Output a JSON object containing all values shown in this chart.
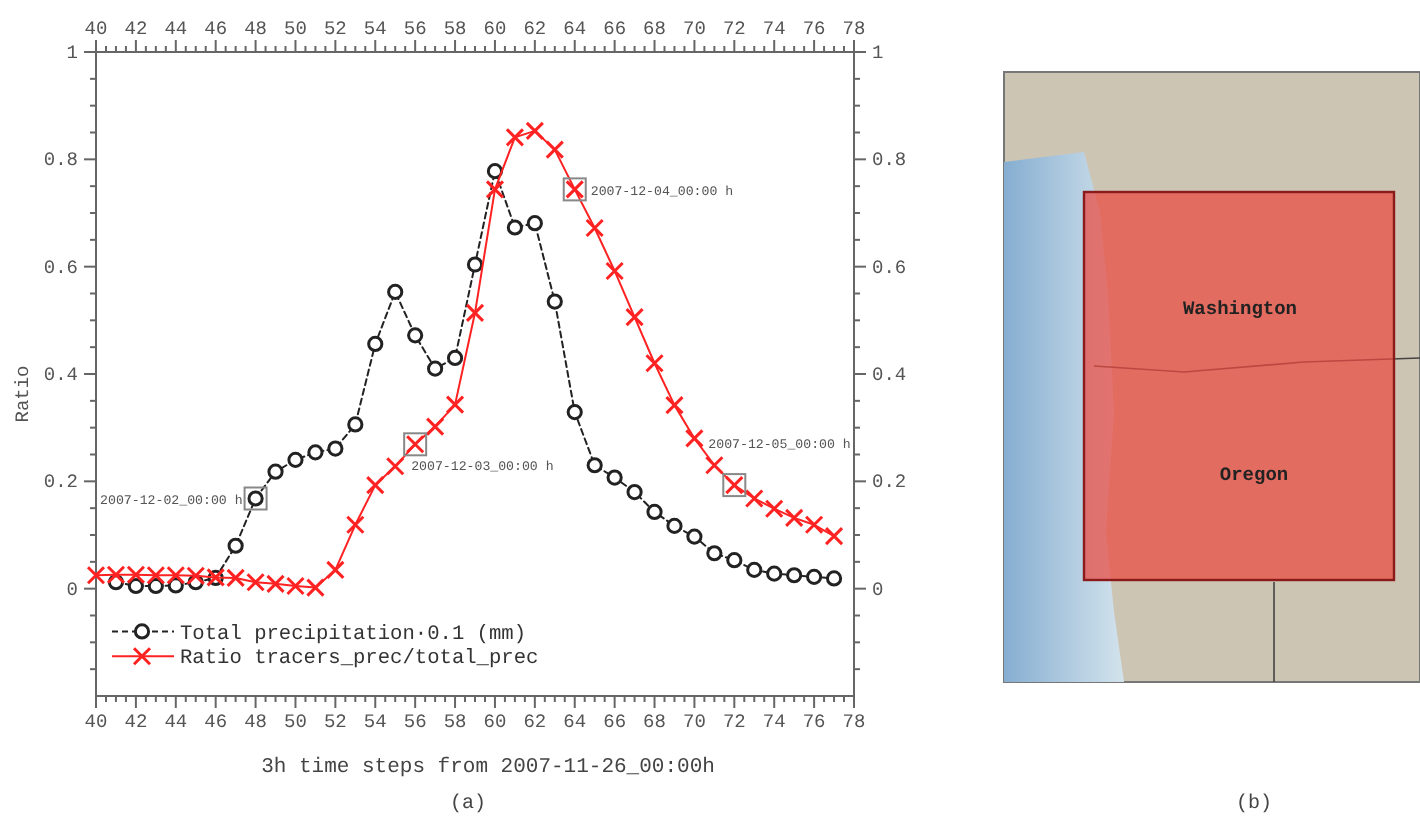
{
  "chart_data": [
    {
      "type": "line",
      "xlabel": "3h time steps from 2007-11-26_00:00h",
      "ylabel": "Ratio",
      "x": [
        40,
        41,
        42,
        43,
        44,
        45,
        46,
        47,
        48,
        49,
        50,
        51,
        52,
        53,
        54,
        55,
        56,
        57,
        58,
        59,
        60,
        61,
        62,
        63,
        64,
        65,
        66,
        67,
        68,
        69,
        70,
        71,
        72,
        73,
        74,
        75,
        76,
        77
      ],
      "series": [
        {
          "name": "Total precipitation·0.1 (mm)",
          "color": "#222222",
          "marker": "circle",
          "line_style": "dashed",
          "values": [
            null,
            0.012,
            0.005,
            0.005,
            0.006,
            0.012,
            0.02,
            0.08,
            0.168,
            0.218,
            0.24,
            0.254,
            0.261,
            0.306,
            0.456,
            0.553,
            0.472,
            0.41,
            0.43,
            0.604,
            0.778,
            0.673,
            0.681,
            0.535,
            0.329,
            0.23,
            0.207,
            0.18,
            0.143,
            0.117,
            0.097,
            0.066,
            0.053,
            0.035,
            0.028,
            0.025,
            0.022,
            0.019
          ]
        },
        {
          "name": "Ratio tracers_prec/total_prec",
          "color": "#ff2222",
          "marker": "cross",
          "line_style": "solid",
          "values": [
            0.025,
            0.026,
            0.026,
            0.025,
            0.025,
            0.024,
            0.021,
            0.02,
            0.012,
            0.009,
            0.005,
            0.002,
            0.035,
            0.119,
            0.193,
            0.228,
            0.269,
            0.302,
            0.343,
            0.514,
            0.744,
            0.841,
            0.853,
            0.818,
            0.744,
            0.672,
            0.592,
            0.506,
            0.42,
            0.342,
            0.28,
            0.23,
            0.193,
            0.168,
            0.149,
            0.132,
            0.119,
            0.098
          ]
        }
      ],
      "xlim": [
        40,
        78
      ],
      "xticks": [
        40,
        {
          "value": 40.5,
          "label": null
        },
        {
          "value": 41,
          "label": null
        },
        {
          "value": 41.5,
          "label": null
        },
        42,
        {
          "value": 42.5,
          "label": null
        },
        {
          "value": 43,
          "label": null
        },
        {
          "value": 43.5,
          "label": null
        },
        44,
        {
          "value": 44.5,
          "label": null
        },
        {
          "value": 45,
          "label": null
        },
        {
          "value": 45.5,
          "label": null
        },
        46,
        {
          "value": 46.5,
          "label": null
        },
        {
          "value": 47,
          "label": null
        },
        {
          "value": 47.5,
          "label": null
        },
        48,
        {
          "value": 48.5,
          "label": null
        },
        {
          "value": 49,
          "label": null
        },
        {
          "value": 49.5,
          "label": null
        },
        50,
        {
          "value": 50.5,
          "label": null
        },
        {
          "value": 51,
          "label": null
        },
        {
          "value": 51.5,
          "label": null
        },
        52,
        {
          "value": 52.5,
          "label": null
        },
        {
          "value": 53,
          "label": null
        },
        {
          "value": 53.5,
          "label": null
        },
        54,
        {
          "value": 54.5,
          "label": null
        },
        {
          "value": 55,
          "label": null
        },
        {
          "value": 55.5,
          "label": null
        },
        56,
        {
          "value": 56.5,
          "label": null
        },
        {
          "value": 57,
          "label": null
        },
        {
          "value": 57.5,
          "label": null
        },
        58,
        {
          "value": 58.5,
          "label": null
        },
        {
          "value": 59,
          "label": null
        },
        {
          "value": 59.5,
          "label": null
        },
        60,
        {
          "value": 60.5,
          "label": null
        },
        {
          "value": 61,
          "label": null
        },
        {
          "value": 61.5,
          "label": null
        },
        62,
        {
          "value": 62.5,
          "label": null
        },
        {
          "value": 63,
          "label": null
        },
        {
          "value": 63.5,
          "label": null
        },
        64,
        {
          "value": 64.5,
          "label": null
        },
        {
          "value": 65,
          "label": null
        },
        {
          "value": 65.5,
          "label": null
        },
        66,
        {
          "value": 66.5,
          "label": null
        },
        {
          "value": 67,
          "label": null
        },
        {
          "value": 67.5,
          "label": null
        },
        68,
        {
          "value": 68.5,
          "label": null
        },
        {
          "value": 69,
          "label": null
        },
        {
          "value": 69.5,
          "label": null
        },
        70,
        {
          "value": 70.5,
          "label": null
        },
        {
          "value": 71,
          "label": null
        },
        {
          "value": 71.5,
          "label": null
        },
        72,
        {
          "value": 72.5,
          "label": null
        },
        {
          "value": 73,
          "label": null
        },
        {
          "value": 73.5,
          "label": null
        },
        74,
        {
          "value": 74.5,
          "label": null
        },
        {
          "value": 75,
          "label": null
        },
        {
          "value": 75.5,
          "label": null
        },
        76,
        {
          "value": 76.5,
          "label": null
        },
        {
          "value": 77,
          "label": null
        },
        {
          "value": 77.5,
          "label": null
        },
        78
      ],
      "x2lim": [
        40,
        78
      ],
      "x2ticks": [
        40,
        {
          "value": 40.5,
          "label": null
        },
        {
          "value": 41,
          "label": null
        },
        {
          "value": 41.5,
          "label": null
        },
        42,
        {
          "value": 42.5,
          "label": null
        },
        {
          "value": 43,
          "label": null
        },
        {
          "value": 43.5,
          "label": null
        },
        44,
        {
          "value": 44.5,
          "label": null
        },
        {
          "value": 45,
          "label": null
        },
        {
          "value": 45.5,
          "label": null
        },
        46,
        {
          "value": 46.5,
          "label": null
        },
        {
          "value": 47,
          "label": null
        },
        {
          "value": 47.5,
          "label": null
        },
        48,
        {
          "value": 48.5,
          "label": null
        },
        {
          "value": 49,
          "label": null
        },
        {
          "value": 49.5,
          "label": null
        },
        50,
        {
          "value": 50.5,
          "label": null
        },
        {
          "value": 51,
          "label": null
        },
        {
          "value": 51.5,
          "label": null
        },
        52,
        {
          "value": 52.5,
          "label": null
        },
        {
          "value": 53,
          "label": null
        },
        {
          "value": 53.5,
          "label": null
        },
        54,
        {
          "value": 54.5,
          "label": null
        },
        {
          "value": 55,
          "label": null
        },
        {
          "value": 55.5,
          "label": null
        },
        56,
        {
          "value": 56.5,
          "label": null
        },
        {
          "value": 57,
          "label": null
        },
        {
          "value": 57.5,
          "label": null
        },
        58,
        {
          "value": 58.5,
          "label": null
        },
        {
          "value": 59,
          "label": null
        },
        {
          "value": 59.5,
          "label": null
        },
        60,
        {
          "value": 60.5,
          "label": null
        },
        {
          "value": 61,
          "label": null
        },
        {
          "value": 61.5,
          "label": null
        },
        62,
        {
          "value": 62.5,
          "label": null
        },
        {
          "value": 63,
          "label": null
        },
        {
          "value": 63.5,
          "label": null
        },
        64,
        {
          "value": 64.5,
          "label": null
        },
        {
          "value": 65,
          "label": null
        },
        {
          "value": 65.5,
          "label": null
        },
        66,
        {
          "value": 66.5,
          "label": null
        },
        {
          "value": 67,
          "label": null
        },
        {
          "value": 67.5,
          "label": null
        },
        68,
        {
          "value": 68.5,
          "label": null
        },
        {
          "value": 69,
          "label": null
        },
        {
          "value": 69.5,
          "label": null
        },
        70,
        {
          "value": 70.5,
          "label": null
        },
        {
          "value": 71,
          "label": null
        },
        {
          "value": 71.5,
          "label": null
        },
        72,
        {
          "value": 72.5,
          "label": null
        },
        {
          "value": 73,
          "label": null
        },
        {
          "value": 73.5,
          "label": null
        },
        74,
        {
          "value": 74.5,
          "label": null
        },
        {
          "value": 75,
          "label": null
        },
        {
          "value": 75.5,
          "label": null
        },
        76,
        {
          "value": 76.5,
          "label": null
        },
        {
          "value": 77,
          "label": null
        },
        {
          "value": 77.5,
          "label": null
        },
        78
      ],
      "ylim": [
        -0.2,
        1
      ],
      "yticks": [
        {
          "value": -0.15,
          "label": null
        },
        {
          "value": -0.1,
          "label": null
        },
        {
          "value": -0.05,
          "label": null
        },
        0,
        {
          "value": 0.05,
          "label": null
        },
        {
          "value": 0.1,
          "label": null
        },
        {
          "value": 0.15,
          "label": null
        },
        0.2,
        {
          "value": 0.25,
          "label": null
        },
        {
          "value": 0.3,
          "label": null
        },
        {
          "value": 0.35,
          "label": null
        },
        0.4,
        {
          "value": 0.45,
          "label": null
        },
        {
          "value": 0.5,
          "label": null
        },
        {
          "value": 0.55,
          "label": null
        },
        0.6,
        {
          "value": 0.65,
          "label": null
        },
        {
          "value": 0.7,
          "label": null
        },
        {
          "value": 0.75,
          "label": null
        },
        0.8,
        {
          "value": 0.85,
          "label": null
        },
        {
          "value": 0.9,
          "label": null
        },
        {
          "value": 0.95,
          "label": null
        },
        1
      ],
      "y2lim": [
        -0.2,
        1
      ],
      "y2ticks": [
        {
          "value": -0.15,
          "label": null
        },
        {
          "value": -0.1,
          "label": null
        },
        {
          "value": -0.05,
          "label": null
        },
        0,
        {
          "value": 0.05,
          "label": null
        },
        {
          "value": 0.1,
          "label": null
        },
        {
          "value": 0.15,
          "label": null
        },
        0.2,
        {
          "value": 0.25,
          "label": null
        },
        {
          "value": 0.3,
          "label": null
        },
        {
          "value": 0.35,
          "label": null
        },
        0.4,
        {
          "value": 0.45,
          "label": null
        },
        {
          "value": 0.5,
          "label": null
        },
        {
          "value": 0.55,
          "label": null
        },
        0.6,
        {
          "value": 0.65,
          "label": null
        },
        {
          "value": 0.7,
          "label": null
        },
        {
          "value": 0.75,
          "label": null
        },
        0.8,
        {
          "value": 0.85,
          "label": null
        },
        {
          "value": 0.9,
          "label": null
        },
        {
          "value": 0.95,
          "label": null
        },
        1
      ],
      "legend": "bottom left",
      "annotations": [
        {
          "text": "2007-12-02_00:00 h",
          "x": 48,
          "y": 0.168
        },
        {
          "text": "2007-12-03_00:00 h",
          "x": 56,
          "y": 0.269
        },
        {
          "text": "2007-12-04_00:00 h",
          "x": 64,
          "y": 0.744
        },
        {
          "text": "2007-12-05_00:00 h",
          "x": 72,
          "y": 0.193
        },
        "(a)"
      ]
    },
    {
      "type": "other",
      "annotations": [
        "Washington",
        "Oregon",
        "(b)"
      ]
    }
  ]
}
